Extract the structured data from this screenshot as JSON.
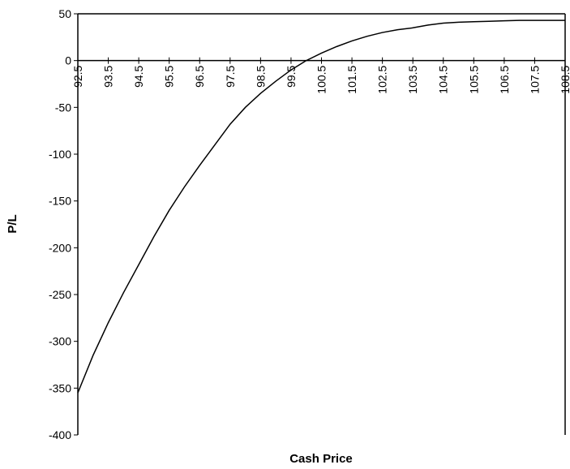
{
  "chart_data": {
    "type": "line",
    "x_label": "Cash Price",
    "y_label": "P/L",
    "x": [
      92.5,
      93,
      93.5,
      94,
      94.5,
      95,
      95.5,
      96,
      96.5,
      97,
      97.5,
      98,
      98.5,
      99,
      99.5,
      100,
      100.5,
      101,
      101.5,
      102,
      102.5,
      103,
      103.5,
      104,
      104.5,
      105,
      105.5,
      106,
      106.5,
      107,
      107.5,
      108,
      108.5
    ],
    "series": [
      {
        "color": "#000000",
        "values": [
          -355,
          -315,
          -280,
          -248,
          -218,
          -188,
          -160,
          -135,
          -112,
          -90,
          -68,
          -50,
          -35,
          -22,
          -10,
          0,
          8,
          15,
          21,
          26,
          30,
          33,
          35,
          38,
          40,
          41,
          41.5,
          42,
          42.5,
          43,
          43,
          43,
          43
        ]
      }
    ],
    "xlim": [
      92.5,
      108.5
    ],
    "xticks": [
      92.5,
      93.5,
      94.5,
      95.5,
      96.5,
      97.5,
      98.5,
      99.5,
      100.5,
      101.5,
      102.5,
      103.5,
      104.5,
      105.5,
      106.5,
      107.5,
      108.5
    ],
    "ylim": [
      -400,
      50
    ],
    "yticks": [
      -400,
      -350,
      -300,
      -250,
      -200,
      -150,
      -100,
      -50,
      0,
      50
    ],
    "grid": false
  }
}
